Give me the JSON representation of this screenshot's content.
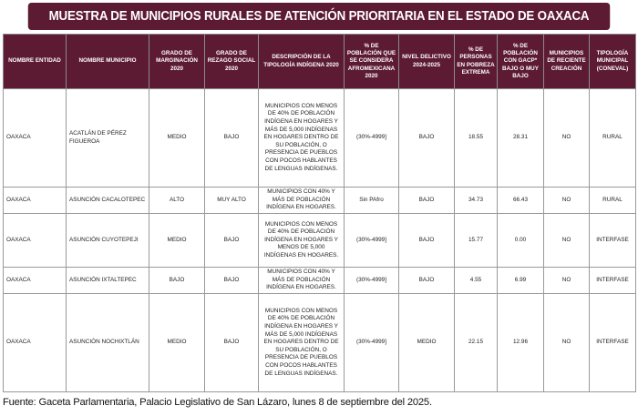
{
  "title": "MUESTRA DE MUNICIPIOS RURALES DE ATENCIÓN PRIORITARIA EN EL ESTADO DE OAXACA",
  "headers": [
    "NOMBRE ENTIDAD",
    "NOMBRE MUNICIPIO",
    "GRADO DE MARGINACIÓN 2020",
    "GRADO DE REZAGO SOCIAL 2020",
    "DESCRIPCIÓN DE LA TIPOLOGÍA INDÍGENA 2020",
    "% DE POBLACIÓN QUE SE CONSIDERA AFROMEXICANA 2020",
    "NIVEL DELICTIVO 2024-2025",
    "% DE PERSONAS EN POBREZA EXTREMA",
    "% DE POBLACIÓN CON GACP* BAJO O MUY BAJO",
    "MUNICIPIOS DE RECIENTE CREACIÓN",
    "TIPOLOGÍA MUNICIPAL (CONEVAL)"
  ],
  "rows": [
    [
      "OAXACA",
      "ACATLÁN DE PÉREZ FIGUEROA",
      "MEDIO",
      "BAJO",
      "MUNICIPIOS CON MENOS DE 40% DE POBLACIÓN INDÍGENA EN HOGARES Y MÁS DE 5,000 INDÍGENAS EN HOGARES DENTRO DE SU POBLACIÓN, O PRESENCIA DE PUEBLOS CON POCOS HABLANTES DE LENGUAS INDÍGENAS.",
      "(30%-4999]",
      "BAJO",
      "18.55",
      "28.31",
      "NO",
      "RURAL"
    ],
    [
      "OAXACA",
      "ASUNCIÓN CACALOTEPEC",
      "ALTO",
      "MUY ALTO",
      "MUNICIPIOS CON 40% Y MÁS DE POBLACIÓN INDÍGENA EN HOGARES.",
      "Sin PAfro",
      "BAJO",
      "34.73",
      "66.43",
      "NO",
      "RURAL"
    ],
    [
      "OAXACA",
      "ASUNCIÓN CUYOTEPEJI",
      "MEDIO",
      "BAJO",
      "MUNICIPIOS CON MENOS DE 40% DE POBLACIÓN INDÍGENA EN HOGARES Y MENOS DE 5,000 INDÍGENAS EN HOGARES.",
      "(30%-4999]",
      "BAJO",
      "15.77",
      "0.00",
      "NO",
      "INTERFASE"
    ],
    [
      "OAXACA",
      "ASUNCIÓN IXTALTEPEC",
      "BAJO",
      "BAJO",
      "MUNICIPIOS CON 40% Y MÁS DE POBLACIÓN INDÍGENA EN HOGARES.",
      "(30%-4999]",
      "BAJO",
      "4.55",
      "6.99",
      "NO",
      "INTERFASE"
    ],
    [
      "OAXACA",
      "ASUNCIÓN NOCHIXTLÁN",
      "MEDIO",
      "BAJO",
      "MUNICIPIOS CON MENOS DE 40% DE POBLACIÓN INDÍGENA EN HOGARES Y MÁS DE 5,000 INDÍGENAS EN HOGARES DENTRO DE SU POBLACIÓN, O PRESENCIA DE PUEBLOS CON POCOS HABLANTES DE LENGUAS INDÍGENAS.",
      "(30%-4999]",
      "MEDIO",
      "22.15",
      "12.96",
      "NO",
      "INTERFASE"
    ]
  ],
  "footer": "Fuente: Gaceta Parlamentaria, Palacio Legislativo de San Lázaro, lunes 8 de septiembre del 2025."
}
